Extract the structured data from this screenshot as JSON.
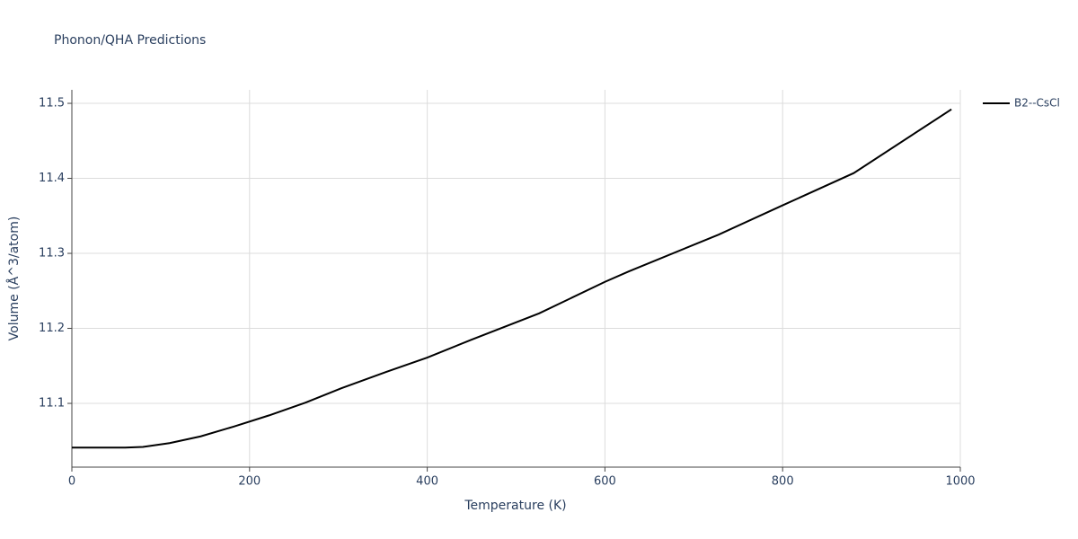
{
  "chart_data": {
    "type": "line",
    "title": "Phonon/QHA Predictions",
    "x_label": "Temperature (K)",
    "y_label": "Volume (Å^3/atom)",
    "x": [
      0,
      60,
      80,
      110,
      145,
      182,
      222,
      263,
      303,
      354,
      400,
      450,
      526,
      600,
      627,
      728,
      800,
      880,
      990
    ],
    "series": [
      {
        "name": "B2--CsCl",
        "color": "#000000",
        "values": [
          11.041,
          11.041,
          11.042,
          11.047,
          11.056,
          11.069,
          11.084,
          11.101,
          11.12,
          11.142,
          11.161,
          11.185,
          11.22,
          11.262,
          11.276,
          11.325,
          11.364,
          11.407,
          11.492
        ]
      }
    ],
    "xlim": [
      0,
      1000
    ],
    "xticks": [
      0,
      200,
      400,
      600,
      800,
      1000
    ],
    "ylim": [
      11.015,
      11.518
    ],
    "yticks": [
      11.1,
      11.2,
      11.3,
      11.4,
      11.5
    ],
    "grid": true,
    "legend": "right"
  }
}
